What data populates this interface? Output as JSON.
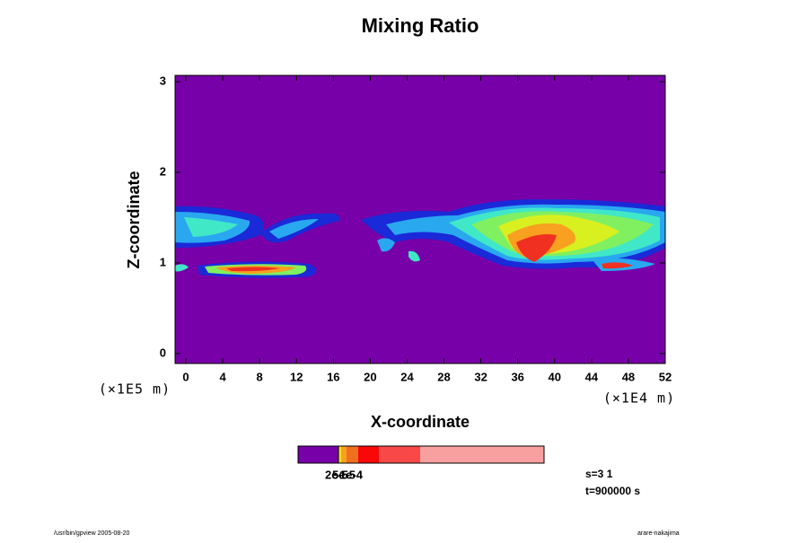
{
  "chart_data": {
    "type": "contour",
    "title": "Mixing Ratio",
    "x_label": "X-coordinate",
    "y_label": "Z-coordinate",
    "x_unit": "(×1E4 m)",
    "y_unit": "(×1E5 m)",
    "xlim": [
      -1.17,
      52
    ],
    "xticks": [
      0,
      4,
      8,
      12,
      16,
      20,
      24,
      28,
      32,
      36,
      40,
      44,
      48,
      52
    ],
    "ylim": [
      -0.11,
      3.07
    ],
    "yticks": [
      0,
      1,
      2,
      3
    ],
    "colorbar_labels": [
      "2e-5",
      "5e-5",
      "1e-4"
    ],
    "annotations": [
      "s=3 1",
      "t=900000 s"
    ],
    "footer_left": "/usr/bin/gpview 2005-08-20",
    "footer_right": "arare-nakajima"
  }
}
